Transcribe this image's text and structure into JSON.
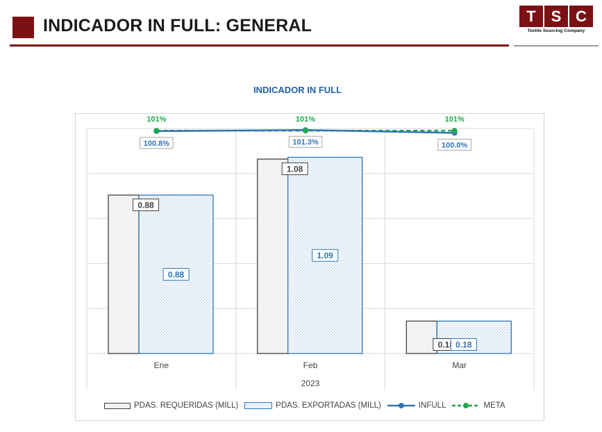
{
  "header": {
    "title": "INDICADOR IN FULL: GENERAL",
    "logo_letters": [
      "T",
      "S",
      "C"
    ],
    "logo_subtitle": "Textile Sourcing Company"
  },
  "colors": {
    "brand": "#7b1115",
    "requeridas_fill": "#f2f2f2",
    "requeridas_stroke": "#404040",
    "exportadas_stroke": "#2e75b6",
    "infull_line": "#2e75b6",
    "meta_line": "#1ea84b",
    "title_blue": "#1f5fa6"
  },
  "chart_data": {
    "type": "bar",
    "title": "INDICADOR IN FULL",
    "categories": [
      "Ene",
      "Feb",
      "Mar"
    ],
    "group_label": "2023",
    "bars_ylim": [
      0,
      1.25
    ],
    "line_ylim": [
      0,
      1.02
    ],
    "series": [
      {
        "name": "PDAS. REQUERIDAS (MILL)",
        "kind": "bar",
        "values": [
          0.88,
          1.08,
          0.18
        ],
        "labels": [
          "0.88",
          "1.08",
          "0.18"
        ]
      },
      {
        "name": "PDAS. EXPORTADAS (MILL)",
        "kind": "bar",
        "values": [
          0.88,
          1.09,
          0.18
        ],
        "labels": [
          "0.88",
          "1.09",
          "0.18"
        ]
      },
      {
        "name": "INFULL",
        "kind": "line",
        "values": [
          1.008,
          1.013,
          1.0
        ],
        "labels": [
          "100.8%",
          "101.3%",
          "100.0%"
        ]
      },
      {
        "name": "META",
        "kind": "line",
        "style": "dashed",
        "values": [
          1.01,
          1.01,
          1.01
        ],
        "labels": [
          "101%",
          "101%",
          "101%"
        ]
      }
    ],
    "legend_position": "bottom",
    "grid": true
  }
}
